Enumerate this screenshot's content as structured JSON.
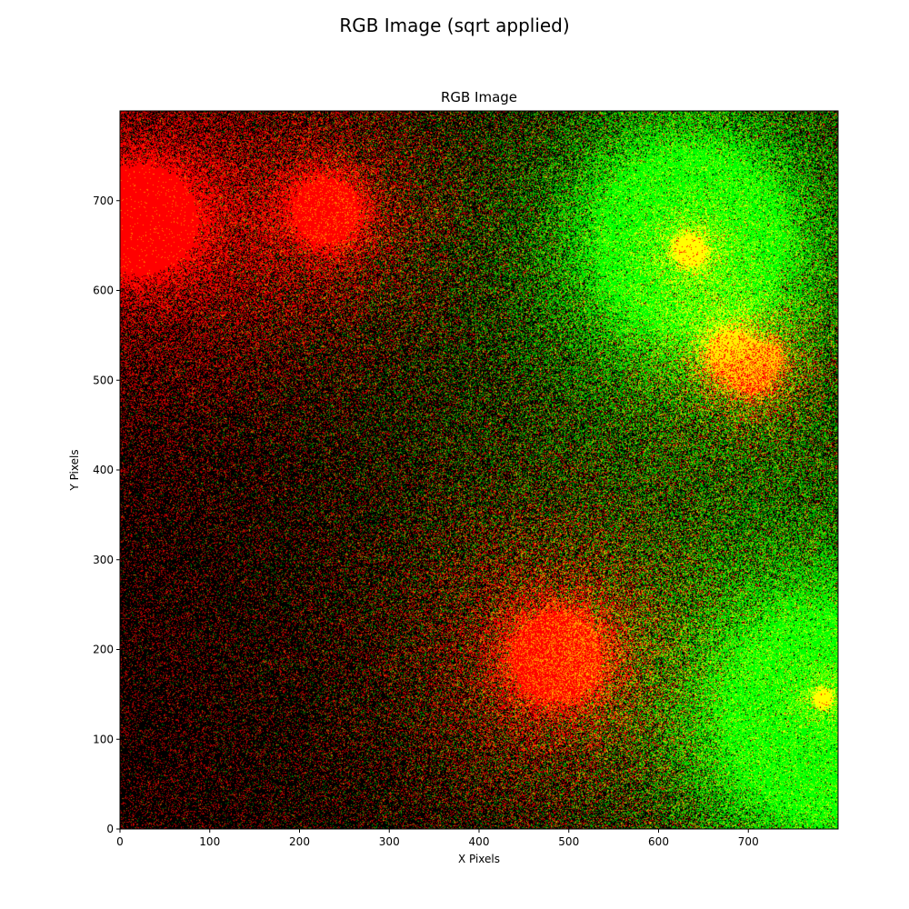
{
  "figure": {
    "suptitle": "RGB Image (sqrt applied)"
  },
  "chart_data": {
    "type": "heatmap",
    "title": "RGB Image",
    "xlabel": "X Pixels",
    "ylabel": "Y Pixels",
    "xlim": [
      0,
      800
    ],
    "ylim": [
      0,
      800
    ],
    "y_origin": "lower",
    "xticks": [
      0,
      100,
      200,
      300,
      400,
      500,
      600,
      700
    ],
    "yticks": [
      0,
      100,
      200,
      300,
      400,
      500,
      600,
      700
    ],
    "grid": false,
    "background_color": "#000000",
    "channels": {
      "red": "#ff0000",
      "green": "#00ff00"
    },
    "sources": [
      {
        "channel": "red",
        "x": 22,
        "y": 678,
        "strength": 1.0,
        "radius": 45
      },
      {
        "channel": "red",
        "x": 232,
        "y": 688,
        "strength": 0.8,
        "radius": 30
      },
      {
        "channel": "red",
        "x": 635,
        "y": 645,
        "strength": 1.0,
        "radius": 12
      },
      {
        "channel": "red",
        "x": 680,
        "y": 530,
        "strength": 0.75,
        "radius": 22
      },
      {
        "channel": "red",
        "x": 705,
        "y": 500,
        "strength": 0.6,
        "radius": 12
      },
      {
        "channel": "red",
        "x": 725,
        "y": 525,
        "strength": 0.5,
        "radius": 10
      },
      {
        "channel": "red",
        "x": 487,
        "y": 192,
        "strength": 1.0,
        "radius": 38
      },
      {
        "channel": "red",
        "x": 783,
        "y": 145,
        "strength": 1.0,
        "radius": 7
      },
      {
        "channel": "green",
        "x": 635,
        "y": 660,
        "strength": 1.0,
        "radius": 95
      },
      {
        "channel": "green",
        "x": 790,
        "y": 120,
        "strength": 1.0,
        "radius": 110
      }
    ]
  }
}
